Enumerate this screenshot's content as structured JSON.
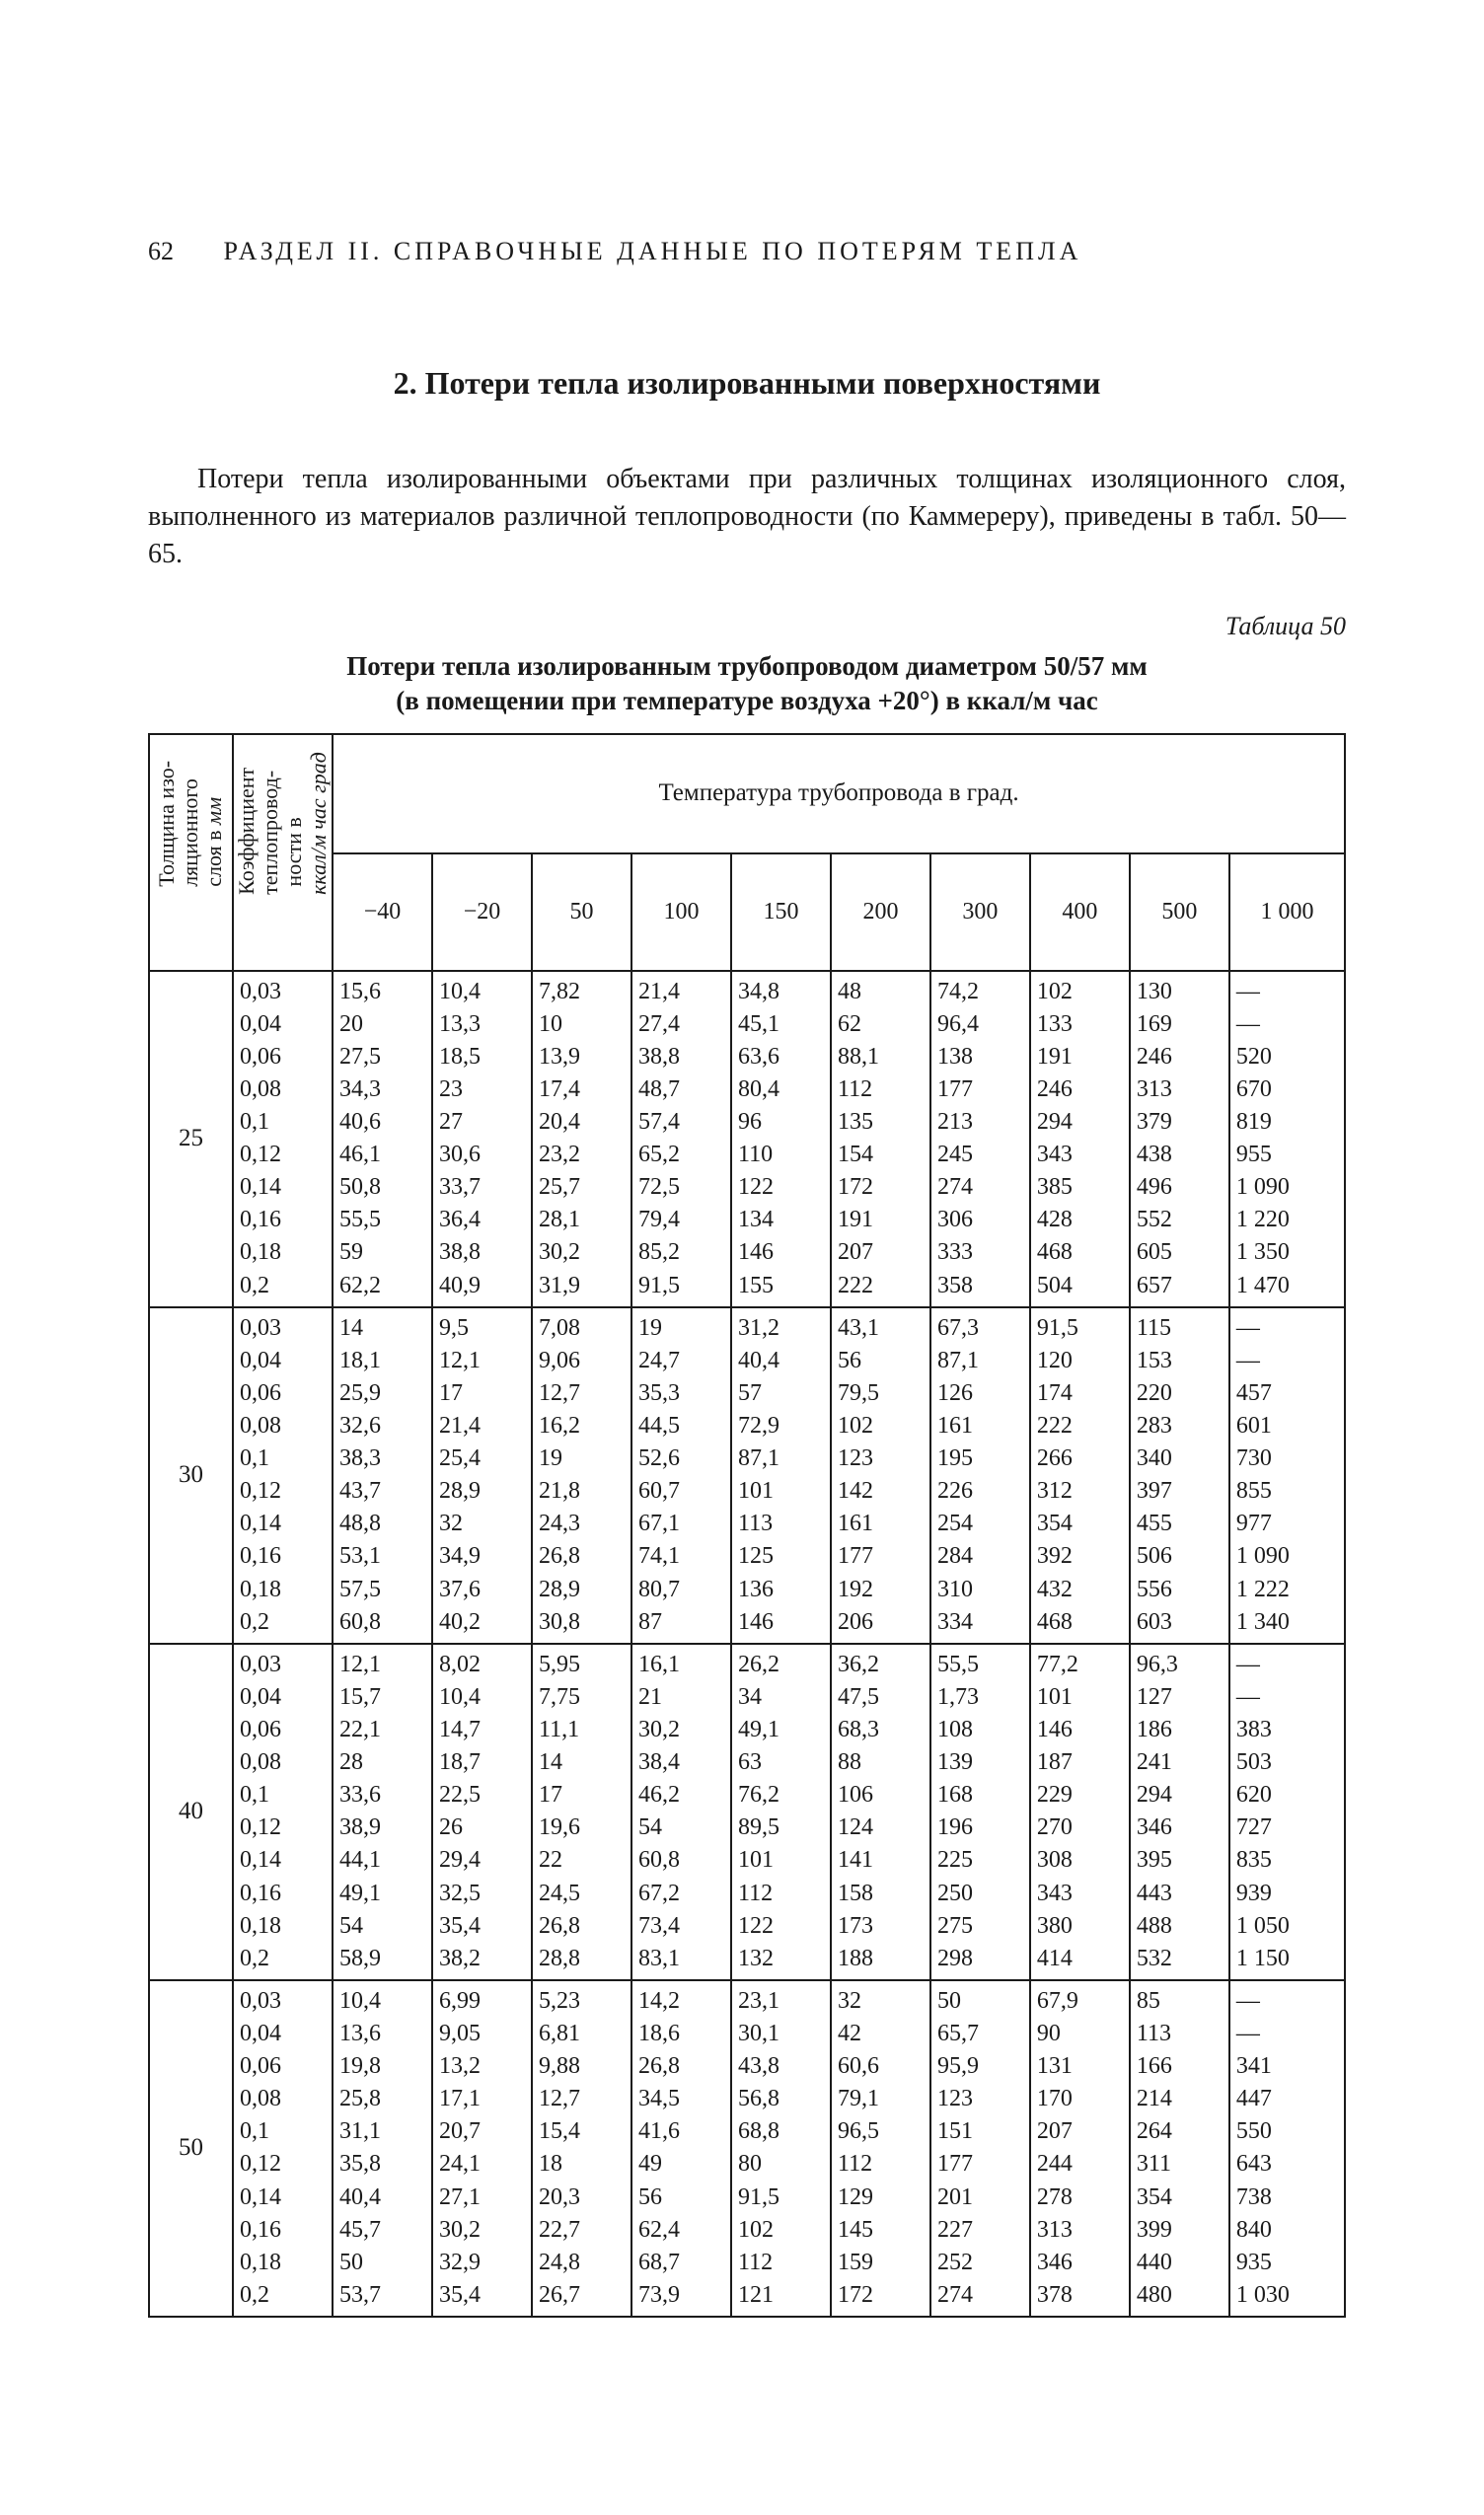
{
  "page_number": "62",
  "running_head": "РАЗДЕЛ II. СПРАВОЧНЫЕ ДАННЫЕ ПО ПОТЕРЯМ ТЕПЛА",
  "section_title": "2. Потери тепла изолированными поверхностями",
  "paragraph": "Потери тепла изолированными объектами при различных толщинах изоляционного слоя, выполненного из материалов различной теплопроводности (по Каммереру), приведены в табл. 50—65.",
  "table_label": "Таблица 50",
  "table_caption_line1": "Потери тепла изолированным трубопроводом диаметром 50/57 мм",
  "table_caption_line2": "(в помещении при температуре воздуха +20°) в ккал/м час",
  "col_thickness_1": "Толщина изо-",
  "col_thickness_2": "ляционного",
  "col_thickness_3": "слоя в ",
  "col_thickness_unit": "мм",
  "col_coef_1": "Коэффициент",
  "col_coef_2": "теплопровод-",
  "col_coef_3": "ности в",
  "col_coef_unit": "ккал/м час град",
  "temp_header": "Температура трубопровода в град.",
  "temps": [
    "−40",
    "−20",
    "50",
    "100",
    "150",
    "200",
    "300",
    "400",
    "500",
    "1 000"
  ],
  "coefs": [
    "0,03",
    "0,04",
    "0,06",
    "0,08",
    "0,1",
    "0,12",
    "0,14",
    "0,16",
    "0,18",
    "0,2"
  ],
  "blocks": [
    {
      "thick": "25",
      "rows": [
        [
          "15,6",
          "10,4",
          "7,82",
          "21,4",
          "34,8",
          "48",
          "74,2",
          "102",
          "130",
          "—"
        ],
        [
          "20",
          "13,3",
          "10",
          "27,4",
          "45,1",
          "62",
          "96,4",
          "133",
          "169",
          "—"
        ],
        [
          "27,5",
          "18,5",
          "13,9",
          "38,8",
          "63,6",
          "88,1",
          "138",
          "191",
          "246",
          "520"
        ],
        [
          "34,3",
          "23",
          "17,4",
          "48,7",
          "80,4",
          "112",
          "177",
          "246",
          "313",
          "670"
        ],
        [
          "40,6",
          "27",
          "20,4",
          "57,4",
          "96",
          "135",
          "213",
          "294",
          "379",
          "819"
        ],
        [
          "46,1",
          "30,6",
          "23,2",
          "65,2",
          "110",
          "154",
          "245",
          "343",
          "438",
          "955"
        ],
        [
          "50,8",
          "33,7",
          "25,7",
          "72,5",
          "122",
          "172",
          "274",
          "385",
          "496",
          "1 090"
        ],
        [
          "55,5",
          "36,4",
          "28,1",
          "79,4",
          "134",
          "191",
          "306",
          "428",
          "552",
          "1 220"
        ],
        [
          "59",
          "38,8",
          "30,2",
          "85,2",
          "146",
          "207",
          "333",
          "468",
          "605",
          "1 350"
        ],
        [
          "62,2",
          "40,9",
          "31,9",
          "91,5",
          "155",
          "222",
          "358",
          "504",
          "657",
          "1 470"
        ]
      ]
    },
    {
      "thick": "30",
      "rows": [
        [
          "14",
          "9,5",
          "7,08",
          "19",
          "31,2",
          "43,1",
          "67,3",
          "91,5",
          "115",
          "—"
        ],
        [
          "18,1",
          "12,1",
          "9,06",
          "24,7",
          "40,4",
          "56",
          "87,1",
          "120",
          "153",
          "—"
        ],
        [
          "25,9",
          "17",
          "12,7",
          "35,3",
          "57",
          "79,5",
          "126",
          "174",
          "220",
          "457"
        ],
        [
          "32,6",
          "21,4",
          "16,2",
          "44,5",
          "72,9",
          "102",
          "161",
          "222",
          "283",
          "601"
        ],
        [
          "38,3",
          "25,4",
          "19",
          "52,6",
          "87,1",
          "123",
          "195",
          "266",
          "340",
          "730"
        ],
        [
          "43,7",
          "28,9",
          "21,8",
          "60,7",
          "101",
          "142",
          "226",
          "312",
          "397",
          "855"
        ],
        [
          "48,8",
          "32",
          "24,3",
          "67,1",
          "113",
          "161",
          "254",
          "354",
          "455",
          "977"
        ],
        [
          "53,1",
          "34,9",
          "26,8",
          "74,1",
          "125",
          "177",
          "284",
          "392",
          "506",
          "1 090"
        ],
        [
          "57,5",
          "37,6",
          "28,9",
          "80,7",
          "136",
          "192",
          "310",
          "432",
          "556",
          "1 222"
        ],
        [
          "60,8",
          "40,2",
          "30,8",
          "87",
          "146",
          "206",
          "334",
          "468",
          "603",
          "1 340"
        ]
      ]
    },
    {
      "thick": "40",
      "rows": [
        [
          "12,1",
          "8,02",
          "5,95",
          "16,1",
          "26,2",
          "36,2",
          "55,5",
          "77,2",
          "96,3",
          "—"
        ],
        [
          "15,7",
          "10,4",
          "7,75",
          "21",
          "34",
          "47,5",
          "1,73",
          "101",
          "127",
          "—"
        ],
        [
          "22,1",
          "14,7",
          "11,1",
          "30,2",
          "49,1",
          "68,3",
          "108",
          "146",
          "186",
          "383"
        ],
        [
          "28",
          "18,7",
          "14",
          "38,4",
          "63",
          "88",
          "139",
          "187",
          "241",
          "503"
        ],
        [
          "33,6",
          "22,5",
          "17",
          "46,2",
          "76,2",
          "106",
          "168",
          "229",
          "294",
          "620"
        ],
        [
          "38,9",
          "26",
          "19,6",
          "54",
          "89,5",
          "124",
          "196",
          "270",
          "346",
          "727"
        ],
        [
          "44,1",
          "29,4",
          "22",
          "60,8",
          "101",
          "141",
          "225",
          "308",
          "395",
          "835"
        ],
        [
          "49,1",
          "32,5",
          "24,5",
          "67,2",
          "112",
          "158",
          "250",
          "343",
          "443",
          "939"
        ],
        [
          "54",
          "35,4",
          "26,8",
          "73,4",
          "122",
          "173",
          "275",
          "380",
          "488",
          "1 050"
        ],
        [
          "58,9",
          "38,2",
          "28,8",
          "83,1",
          "132",
          "188",
          "298",
          "414",
          "532",
          "1 150"
        ]
      ]
    },
    {
      "thick": "50",
      "rows": [
        [
          "10,4",
          "6,99",
          "5,23",
          "14,2",
          "23,1",
          "32",
          "50",
          "67,9",
          "85",
          "—"
        ],
        [
          "13,6",
          "9,05",
          "6,81",
          "18,6",
          "30,1",
          "42",
          "65,7",
          "90",
          "113",
          "—"
        ],
        [
          "19,8",
          "13,2",
          "9,88",
          "26,8",
          "43,8",
          "60,6",
          "95,9",
          "131",
          "166",
          "341"
        ],
        [
          "25,8",
          "17,1",
          "12,7",
          "34,5",
          "56,8",
          "79,1",
          "123",
          "170",
          "214",
          "447"
        ],
        [
          "31,1",
          "20,7",
          "15,4",
          "41,6",
          "68,8",
          "96,5",
          "151",
          "207",
          "264",
          "550"
        ],
        [
          "35,8",
          "24,1",
          "18",
          "49",
          "80",
          "112",
          "177",
          "244",
          "311",
          "643"
        ],
        [
          "40,4",
          "27,1",
          "20,3",
          "56",
          "91,5",
          "129",
          "201",
          "278",
          "354",
          "738"
        ],
        [
          "45,7",
          "30,2",
          "22,7",
          "62,4",
          "102",
          "145",
          "227",
          "313",
          "399",
          "840"
        ],
        [
          "50",
          "32,9",
          "24,8",
          "68,7",
          "112",
          "159",
          "252",
          "346",
          "440",
          "935"
        ],
        [
          "53,7",
          "35,4",
          "26,7",
          "73,9",
          "121",
          "172",
          "274",
          "378",
          "480",
          "1 030"
        ]
      ]
    }
  ]
}
